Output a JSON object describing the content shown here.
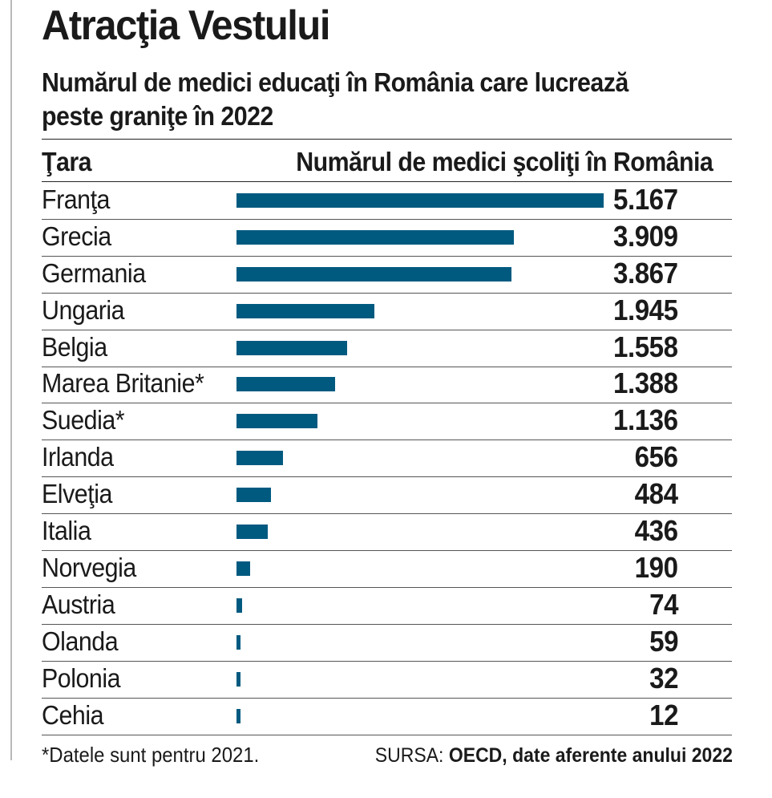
{
  "title": "Atracţia Vestului",
  "subtitle": "Numărul de medici educaţi în România care lucrează peste graniţe în 2022",
  "chart_data": {
    "type": "bar",
    "orientation": "horizontal",
    "column_headers": {
      "category": "Ţara",
      "value": "Numărul de medici şcoliţi în România"
    },
    "categories": [
      "Franţa",
      "Grecia",
      "Germania",
      "Ungaria",
      "Belgia",
      "Marea Britanie*",
      "Suedia*",
      "Irlanda",
      "Elveţia",
      "Italia",
      "Norvegia",
      "Austria",
      "Olanda",
      "Polonia",
      "Cehia"
    ],
    "values": [
      5167,
      3909,
      3867,
      1945,
      1558,
      1388,
      1136,
      656,
      484,
      436,
      190,
      74,
      59,
      32,
      12
    ],
    "value_labels": [
      "5.167",
      "3.909",
      "3.867",
      "1.945",
      "1.558",
      "1.388",
      "1.136",
      "656",
      "484",
      "436",
      "190",
      "74",
      "59",
      "32",
      "12"
    ],
    "bar_color": "#005a80"
  },
  "footnote": "*Datele sunt pentru 2021.",
  "source": {
    "label": "SURSA:",
    "text": "OECD, date aferente anului 2022"
  }
}
